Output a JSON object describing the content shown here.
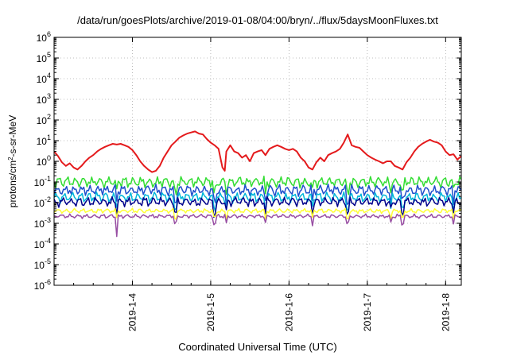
{
  "chart_data": {
    "type": "line",
    "title": "/data/run/goesPlots/archive/2019-01-08/04:00/bryn/../flux/5daysMoonFluxes.txt",
    "xlabel": "Coordinated Universal Time (UTC)",
    "ylabel": {
      "base": "protons/cm",
      "sup": "2",
      "rest": "-s-sr-MeV"
    },
    "yscale": "log",
    "ylim_exp": [
      -6,
      6
    ],
    "xlim_days": [
      3.0,
      8.2
    ],
    "grid": true,
    "xticks": [
      {
        "value": 4,
        "label": "2019-1-4"
      },
      {
        "value": 5,
        "label": "2019-1-5"
      },
      {
        "value": 6,
        "label": "2019-1-6"
      },
      {
        "value": 7,
        "label": "2019-1-7"
      },
      {
        "value": 8,
        "label": "2019-1-8"
      }
    ],
    "series": [
      {
        "color": "#e41a1c",
        "width": 2.0,
        "points": [
          [
            3.0,
            3.0
          ],
          [
            3.05,
            1.8
          ],
          [
            3.1,
            0.9
          ],
          [
            3.15,
            0.6
          ],
          [
            3.2,
            0.8
          ],
          [
            3.25,
            0.5
          ],
          [
            3.3,
            0.4
          ],
          [
            3.35,
            0.6
          ],
          [
            3.4,
            1.0
          ],
          [
            3.45,
            1.5
          ],
          [
            3.5,
            2.0
          ],
          [
            3.55,
            3.0
          ],
          [
            3.6,
            4.0
          ],
          [
            3.65,
            5.0
          ],
          [
            3.7,
            6.0
          ],
          [
            3.75,
            7.0
          ],
          [
            3.8,
            6.5
          ],
          [
            3.85,
            7.0
          ],
          [
            3.9,
            6.0
          ],
          [
            3.95,
            5.0
          ],
          [
            4.0,
            3.5
          ],
          [
            4.05,
            2.0
          ],
          [
            4.1,
            1.0
          ],
          [
            4.15,
            0.6
          ],
          [
            4.2,
            0.4
          ],
          [
            4.25,
            0.3
          ],
          [
            4.3,
            0.35
          ],
          [
            4.35,
            0.6
          ],
          [
            4.4,
            1.5
          ],
          [
            4.45,
            3.0
          ],
          [
            4.5,
            6.0
          ],
          [
            4.55,
            9.0
          ],
          [
            4.6,
            14.0
          ],
          [
            4.65,
            18.0
          ],
          [
            4.7,
            22.0
          ],
          [
            4.75,
            25.0
          ],
          [
            4.8,
            28.0
          ],
          [
            4.85,
            22.0
          ],
          [
            4.9,
            20.0
          ],
          [
            4.95,
            12.0
          ],
          [
            5.0,
            8.0
          ],
          [
            5.05,
            6.0
          ],
          [
            5.1,
            4.0
          ],
          [
            5.15,
            0.5
          ],
          [
            5.18,
            0.35
          ],
          [
            5.2,
            3.0
          ],
          [
            5.25,
            6.0
          ],
          [
            5.3,
            3.0
          ],
          [
            5.35,
            2.5
          ],
          [
            5.4,
            1.5
          ],
          [
            5.45,
            2.0
          ],
          [
            5.5,
            1.0
          ],
          [
            5.55,
            2.5
          ],
          [
            5.6,
            3.0
          ],
          [
            5.65,
            3.5
          ],
          [
            5.7,
            2.0
          ],
          [
            5.75,
            4.0
          ],
          [
            5.8,
            5.0
          ],
          [
            5.85,
            6.0
          ],
          [
            5.9,
            5.0
          ],
          [
            5.95,
            4.0
          ],
          [
            6.0,
            3.5
          ],
          [
            6.05,
            4.0
          ],
          [
            6.1,
            3.0
          ],
          [
            6.15,
            1.5
          ],
          [
            6.2,
            1.0
          ],
          [
            6.25,
            0.5
          ],
          [
            6.3,
            0.4
          ],
          [
            6.35,
            0.9
          ],
          [
            6.4,
            1.5
          ],
          [
            6.45,
            1.0
          ],
          [
            6.5,
            2.0
          ],
          [
            6.55,
            2.5
          ],
          [
            6.6,
            3.0
          ],
          [
            6.65,
            4.0
          ],
          [
            6.7,
            8.0
          ],
          [
            6.75,
            20.0
          ],
          [
            6.8,
            6.0
          ],
          [
            6.85,
            5.0
          ],
          [
            6.9,
            4.5
          ],
          [
            6.95,
            3.0
          ],
          [
            7.0,
            2.0
          ],
          [
            7.05,
            1.5
          ],
          [
            7.1,
            1.2
          ],
          [
            7.15,
            1.0
          ],
          [
            7.2,
            0.8
          ],
          [
            7.25,
            1.0
          ],
          [
            7.3,
            1.0
          ],
          [
            7.35,
            0.6
          ],
          [
            7.4,
            0.5
          ],
          [
            7.45,
            0.4
          ],
          [
            7.5,
            0.9
          ],
          [
            7.55,
            1.5
          ],
          [
            7.6,
            3.0
          ],
          [
            7.65,
            5.0
          ],
          [
            7.7,
            7.0
          ],
          [
            7.75,
            9.0
          ],
          [
            7.8,
            11.0
          ],
          [
            7.85,
            9.0
          ],
          [
            7.9,
            8.0
          ],
          [
            7.95,
            6.0
          ],
          [
            8.0,
            3.0
          ],
          [
            8.05,
            2.0
          ],
          [
            8.1,
            2.2
          ],
          [
            8.15,
            1.2
          ],
          [
            8.2,
            1.8
          ]
        ]
      },
      {
        "color": "#33dd33",
        "width": 1.5,
        "base": 0.1,
        "amp": 0.17,
        "phase": 0.0
      },
      {
        "color": "#1f4fcc",
        "width": 1.5,
        "base": 0.04,
        "amp": 0.17,
        "phase": 1.3
      },
      {
        "color": "#00b7d9",
        "width": 1.5,
        "base": 0.018,
        "amp": 0.16,
        "phase": 2.1
      },
      {
        "color": "#00008b",
        "width": 1.5,
        "base": 0.011,
        "amp": 0.14,
        "phase": 3.4
      },
      {
        "color": "#ffff33",
        "width": 1.5,
        "base": 0.004,
        "amp": 0.07,
        "phase": 0.7
      },
      {
        "color": "#984ea3",
        "width": 1.5,
        "base": 0.0022,
        "amp": 0.06,
        "phase": 4.2
      }
    ],
    "dip_days": [
      3.8,
      5.05,
      5.7,
      6.3,
      7.3,
      7.45,
      8.1,
      4.55,
      5.2,
      6.75
    ]
  }
}
